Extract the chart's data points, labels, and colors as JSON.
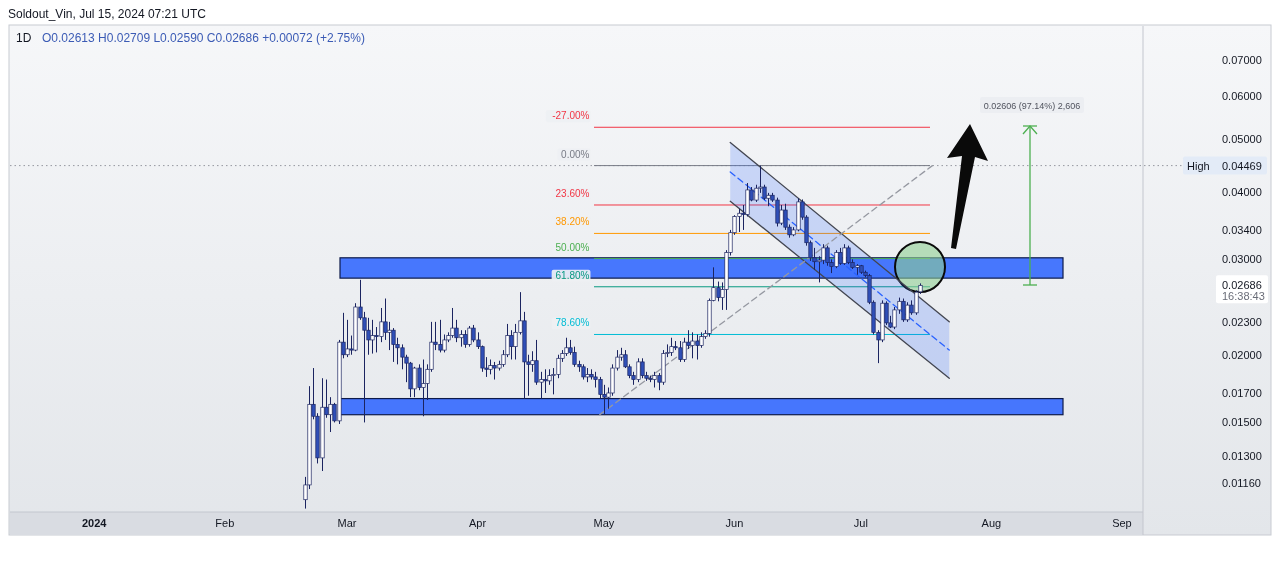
{
  "chart_data": {
    "type": "candlestick",
    "title": "1D",
    "subtitle": "O0.02613 H0.02709 L0.02590 C0.02686 +0.00072 (+2.75%)",
    "x": [
      "2024-02-20",
      "2024-02-21",
      "2024-02-22",
      "2024-02-23",
      "2024-02-24",
      "2024-02-25",
      "2024-02-26",
      "2024-02-27",
      "2024-02-28",
      "2024-02-29",
      "2024-03-01",
      "2024-03-02",
      "2024-03-03",
      "2024-03-04",
      "2024-03-05",
      "2024-03-06",
      "2024-03-07",
      "2024-03-08",
      "2024-03-09",
      "2024-03-10",
      "2024-03-11",
      "2024-03-12",
      "2024-03-13",
      "2024-03-14",
      "2024-03-15",
      "2024-03-16",
      "2024-03-17",
      "2024-03-18",
      "2024-03-19",
      "2024-03-20",
      "2024-03-21",
      "2024-03-22",
      "2024-03-23",
      "2024-03-24",
      "2024-03-25",
      "2024-03-26",
      "2024-03-27",
      "2024-03-28",
      "2024-03-29",
      "2024-03-30",
      "2024-03-31",
      "2024-04-01",
      "2024-04-02",
      "2024-04-03",
      "2024-04-04",
      "2024-04-05",
      "2024-04-06",
      "2024-04-07",
      "2024-04-08",
      "2024-04-09",
      "2024-04-10",
      "2024-04-11",
      "2024-04-12",
      "2024-04-13",
      "2024-04-14",
      "2024-04-15",
      "2024-04-16",
      "2024-04-17",
      "2024-04-18",
      "2024-04-19",
      "2024-04-20",
      "2024-04-21",
      "2024-04-22",
      "2024-04-23",
      "2024-04-24",
      "2024-04-25",
      "2024-04-26",
      "2024-04-27",
      "2024-04-28",
      "2024-04-29",
      "2024-04-30",
      "2024-05-01",
      "2024-05-02",
      "2024-05-03",
      "2024-05-04",
      "2024-05-05",
      "2024-05-06",
      "2024-05-07",
      "2024-05-08",
      "2024-05-09",
      "2024-05-10",
      "2024-05-11",
      "2024-05-12",
      "2024-05-13",
      "2024-05-14",
      "2024-05-15",
      "2024-05-16",
      "2024-05-17",
      "2024-05-18",
      "2024-05-19",
      "2024-05-20",
      "2024-05-21",
      "2024-05-22",
      "2024-05-23",
      "2024-05-24",
      "2024-05-25",
      "2024-05-26",
      "2024-05-27",
      "2024-05-28",
      "2024-05-29",
      "2024-05-30",
      "2024-05-31",
      "2024-06-01",
      "2024-06-02",
      "2024-06-03",
      "2024-06-04",
      "2024-06-05",
      "2024-06-06",
      "2024-06-07",
      "2024-06-08",
      "2024-06-09",
      "2024-06-10",
      "2024-06-11",
      "2024-06-12",
      "2024-06-13",
      "2024-06-14",
      "2024-06-15",
      "2024-06-16",
      "2024-06-17",
      "2024-06-18",
      "2024-06-19",
      "2024-06-20",
      "2024-06-21",
      "2024-06-22",
      "2024-06-23",
      "2024-06-24",
      "2024-06-25",
      "2024-06-26",
      "2024-06-27",
      "2024-06-28",
      "2024-06-29",
      "2024-06-30",
      "2024-07-01",
      "2024-07-02",
      "2024-07-03",
      "2024-07-04",
      "2024-07-05",
      "2024-07-06",
      "2024-07-07",
      "2024-07-08",
      "2024-07-09",
      "2024-07-10",
      "2024-07-11",
      "2024-07-12",
      "2024-07-13",
      "2024-07-14",
      "2024-07-15"
    ],
    "ohlc": [
      [
        0.0108,
        0.0119,
        0.0104,
        0.0115
      ],
      [
        0.0115,
        0.0175,
        0.0113,
        0.0162
      ],
      [
        0.0162,
        0.0189,
        0.0152,
        0.0154
      ],
      [
        0.0154,
        0.0156,
        0.0126,
        0.0129
      ],
      [
        0.0129,
        0.0181,
        0.0122,
        0.016
      ],
      [
        0.016,
        0.018,
        0.0153,
        0.0155
      ],
      [
        0.0155,
        0.0167,
        0.0144,
        0.0162
      ],
      [
        0.0162,
        0.0163,
        0.015,
        0.0151
      ],
      [
        0.0151,
        0.0213,
        0.0149,
        0.0211
      ],
      [
        0.0211,
        0.0239,
        0.0197,
        0.02
      ],
      [
        0.02,
        0.0232,
        0.0198,
        0.0205
      ],
      [
        0.0205,
        0.0217,
        0.02,
        0.0204
      ],
      [
        0.0204,
        0.0249,
        0.0203,
        0.0245
      ],
      [
        0.0245,
        0.0275,
        0.0232,
        0.0234
      ],
      [
        0.0234,
        0.024,
        0.015,
        0.0222
      ],
      [
        0.0222,
        0.0234,
        0.02,
        0.0213
      ],
      [
        0.0213,
        0.0232,
        0.0201,
        0.0217
      ],
      [
        0.0217,
        0.0225,
        0.0202,
        0.0216
      ],
      [
        0.0216,
        0.0244,
        0.0211,
        0.023
      ],
      [
        0.023,
        0.0254,
        0.0213,
        0.022
      ],
      [
        0.022,
        0.023,
        0.0204,
        0.0222
      ],
      [
        0.0222,
        0.0224,
        0.0194,
        0.0209
      ],
      [
        0.0209,
        0.0215,
        0.0192,
        0.0206
      ],
      [
        0.0206,
        0.0209,
        0.0188,
        0.0198
      ],
      [
        0.0198,
        0.02,
        0.0178,
        0.0193
      ],
      [
        0.0193,
        0.0194,
        0.0167,
        0.0173
      ],
      [
        0.0173,
        0.019,
        0.0167,
        0.0189
      ],
      [
        0.0189,
        0.0192,
        0.0172,
        0.0174
      ],
      [
        0.0174,
        0.0196,
        0.0154,
        0.0177
      ],
      [
        0.0177,
        0.0192,
        0.0165,
        0.0188
      ],
      [
        0.0188,
        0.023,
        0.0186,
        0.0211
      ],
      [
        0.0211,
        0.023,
        0.0204,
        0.0209
      ],
      [
        0.0209,
        0.0232,
        0.0202,
        0.0204
      ],
      [
        0.0204,
        0.0218,
        0.0202,
        0.0213
      ],
      [
        0.0213,
        0.022,
        0.0211,
        0.0217
      ],
      [
        0.0217,
        0.0244,
        0.0215,
        0.0224
      ],
      [
        0.0224,
        0.0232,
        0.0211,
        0.0215
      ],
      [
        0.0215,
        0.0222,
        0.0207,
        0.0218
      ],
      [
        0.0218,
        0.0222,
        0.0206,
        0.0209
      ],
      [
        0.0209,
        0.0226,
        0.0207,
        0.0224
      ],
      [
        0.0224,
        0.0227,
        0.0211,
        0.0213
      ],
      [
        0.0213,
        0.022,
        0.0205,
        0.0207
      ],
      [
        0.0207,
        0.0208,
        0.0186,
        0.0189
      ],
      [
        0.0189,
        0.0198,
        0.0182,
        0.0188
      ],
      [
        0.0188,
        0.0196,
        0.0184,
        0.0191
      ],
      [
        0.0191,
        0.0194,
        0.018,
        0.0189
      ],
      [
        0.0189,
        0.0195,
        0.0187,
        0.0192
      ],
      [
        0.0192,
        0.0204,
        0.019,
        0.02
      ],
      [
        0.02,
        0.0228,
        0.0198,
        0.0217
      ],
      [
        0.0217,
        0.0222,
        0.0196,
        0.0207
      ],
      [
        0.0207,
        0.0228,
        0.0196,
        0.022
      ],
      [
        0.022,
        0.0261,
        0.0218,
        0.0231
      ],
      [
        0.0231,
        0.024,
        0.0166,
        0.0194
      ],
      [
        0.0194,
        0.02,
        0.0168,
        0.0192
      ],
      [
        0.0192,
        0.0203,
        0.0186,
        0.0195
      ],
      [
        0.0195,
        0.0213,
        0.0176,
        0.0178
      ],
      [
        0.0178,
        0.0186,
        0.0166,
        0.018
      ],
      [
        0.018,
        0.0188,
        0.017,
        0.0179
      ],
      [
        0.0179,
        0.0188,
        0.0176,
        0.0183
      ],
      [
        0.0183,
        0.0189,
        0.0169,
        0.0184
      ],
      [
        0.0184,
        0.02,
        0.0181,
        0.0197
      ],
      [
        0.0197,
        0.0204,
        0.0194,
        0.0201
      ],
      [
        0.0201,
        0.0215,
        0.0199,
        0.0206
      ],
      [
        0.0206,
        0.0213,
        0.02,
        0.0202
      ],
      [
        0.0202,
        0.0207,
        0.019,
        0.0192
      ],
      [
        0.0192,
        0.0195,
        0.0186,
        0.019
      ],
      [
        0.019,
        0.0192,
        0.018,
        0.0182
      ],
      [
        0.0182,
        0.0189,
        0.0178,
        0.0184
      ],
      [
        0.0184,
        0.0188,
        0.018,
        0.0182
      ],
      [
        0.0182,
        0.0186,
        0.0174,
        0.018
      ],
      [
        0.018,
        0.0182,
        0.0166,
        0.0169
      ],
      [
        0.0169,
        0.0176,
        0.0155,
        0.0167
      ],
      [
        0.0167,
        0.0174,
        0.0159,
        0.017
      ],
      [
        0.017,
        0.0192,
        0.0168,
        0.0189
      ],
      [
        0.0189,
        0.0204,
        0.0187,
        0.0198
      ],
      [
        0.0198,
        0.0206,
        0.0195,
        0.02
      ],
      [
        0.02,
        0.0204,
        0.0189,
        0.019
      ],
      [
        0.019,
        0.0192,
        0.0181,
        0.0183
      ],
      [
        0.0183,
        0.0186,
        0.0176,
        0.018
      ],
      [
        0.018,
        0.0197,
        0.0178,
        0.0194
      ],
      [
        0.0194,
        0.0197,
        0.0181,
        0.0183
      ],
      [
        0.0183,
        0.0186,
        0.0179,
        0.0181
      ],
      [
        0.0181,
        0.0183,
        0.0178,
        0.018
      ],
      [
        0.018,
        0.0186,
        0.0174,
        0.0183
      ],
      [
        0.0183,
        0.0185,
        0.0172,
        0.0178
      ],
      [
        0.0178,
        0.0204,
        0.0176,
        0.0201
      ],
      [
        0.0201,
        0.0209,
        0.0198,
        0.0202
      ],
      [
        0.0202,
        0.0215,
        0.0199,
        0.0207
      ],
      [
        0.0207,
        0.0212,
        0.0204,
        0.0206
      ],
      [
        0.0206,
        0.0212,
        0.0194,
        0.0196
      ],
      [
        0.0196,
        0.0215,
        0.0194,
        0.0211
      ],
      [
        0.0211,
        0.0222,
        0.0205,
        0.0208
      ],
      [
        0.0208,
        0.022,
        0.0197,
        0.0212
      ],
      [
        0.0212,
        0.0218,
        0.0196,
        0.0208
      ],
      [
        0.0208,
        0.022,
        0.0206,
        0.0216
      ],
      [
        0.0216,
        0.0222,
        0.0214,
        0.0219
      ],
      [
        0.0219,
        0.0254,
        0.0216,
        0.0252
      ],
      [
        0.0252,
        0.029,
        0.0251,
        0.0266
      ],
      [
        0.0266,
        0.0273,
        0.0251,
        0.0255
      ],
      [
        0.0255,
        0.0272,
        0.0242,
        0.0264
      ],
      [
        0.0264,
        0.0312,
        0.0242,
        0.0309
      ],
      [
        0.0309,
        0.034,
        0.0305,
        0.0336
      ],
      [
        0.0336,
        0.0362,
        0.0333,
        0.036
      ],
      [
        0.036,
        0.0372,
        0.0337,
        0.0365
      ],
      [
        0.0365,
        0.0378,
        0.034,
        0.0363
      ],
      [
        0.0363,
        0.0415,
        0.036,
        0.0403
      ],
      [
        0.0403,
        0.0408,
        0.0384,
        0.0386
      ],
      [
        0.0386,
        0.0412,
        0.0383,
        0.0406
      ],
      [
        0.0406,
        0.04469,
        0.0398,
        0.0408
      ],
      [
        0.0408,
        0.0412,
        0.0386,
        0.0389
      ],
      [
        0.0389,
        0.0398,
        0.0376,
        0.0394
      ],
      [
        0.0394,
        0.0398,
        0.0383,
        0.0386
      ],
      [
        0.0386,
        0.039,
        0.0345,
        0.035
      ],
      [
        0.035,
        0.0378,
        0.0347,
        0.037
      ],
      [
        0.037,
        0.038,
        0.034,
        0.0344
      ],
      [
        0.0344,
        0.0348,
        0.0329,
        0.0333
      ],
      [
        0.0333,
        0.0344,
        0.0331,
        0.034
      ],
      [
        0.034,
        0.0389,
        0.0338,
        0.0383
      ],
      [
        0.0383,
        0.0387,
        0.0355,
        0.0359
      ],
      [
        0.0359,
        0.0362,
        0.0318,
        0.0322
      ],
      [
        0.0322,
        0.0325,
        0.0298,
        0.0302
      ],
      [
        0.0302,
        0.0315,
        0.0287,
        0.0297
      ],
      [
        0.0297,
        0.0304,
        0.0272,
        0.0299
      ],
      [
        0.0299,
        0.032,
        0.0294,
        0.0315
      ],
      [
        0.0315,
        0.0318,
        0.0292,
        0.0296
      ],
      [
        0.0296,
        0.03,
        0.0283,
        0.0291
      ],
      [
        0.0291,
        0.0312,
        0.0289,
        0.0309
      ],
      [
        0.0309,
        0.0315,
        0.0293,
        0.0295
      ],
      [
        0.0295,
        0.032,
        0.0293,
        0.0315
      ],
      [
        0.0315,
        0.0318,
        0.0294,
        0.0296
      ],
      [
        0.0296,
        0.03,
        0.0288,
        0.029
      ],
      [
        0.029,
        0.0294,
        0.0281,
        0.0292
      ],
      [
        0.0292,
        0.0293,
        0.0282,
        0.0284
      ],
      [
        0.0284,
        0.0286,
        0.0278,
        0.028
      ],
      [
        0.028,
        0.0282,
        0.0248,
        0.025
      ],
      [
        0.025,
        0.0252,
        0.0218,
        0.022
      ],
      [
        0.022,
        0.0222,
        0.0193,
        0.0213
      ],
      [
        0.0213,
        0.0252,
        0.0211,
        0.0249
      ],
      [
        0.0249,
        0.0251,
        0.0227,
        0.0229
      ],
      [
        0.0229,
        0.0236,
        0.0224,
        0.0225
      ],
      [
        0.0225,
        0.0245,
        0.0223,
        0.0242
      ],
      [
        0.0242,
        0.0255,
        0.0238,
        0.0251
      ],
      [
        0.0251,
        0.0254,
        0.023,
        0.0232
      ],
      [
        0.0232,
        0.025,
        0.023,
        0.0247
      ],
      [
        0.0247,
        0.0252,
        0.0237,
        0.0239
      ],
      [
        0.0239,
        0.0263,
        0.0237,
        0.0261
      ],
      [
        0.02613,
        0.02709,
        0.0259,
        0.02686
      ]
    ],
    "xlim": [
      "2023-12-12",
      "2024-09-06"
    ],
    "xticks": [
      {
        "value": "2024-01-01",
        "label": "2024"
      },
      {
        "value": "2024-02-01",
        "label": "Feb"
      },
      {
        "value": "2024-03-01",
        "label": "Mar"
      },
      {
        "value": "2024-04-01",
        "label": "Apr"
      },
      {
        "value": "2024-05-01",
        "label": "May"
      },
      {
        "value": "2024-06-01",
        "label": "Jun"
      },
      {
        "value": "2024-07-01",
        "label": "Jul"
      },
      {
        "value": "2024-08-01",
        "label": "Aug"
      },
      {
        "value": "2024-09-01",
        "label": "Sep"
      }
    ],
    "ylim": [
      0.01025,
      0.0809
    ],
    "yticks": [
      {
        "value": 0.07,
        "label": "0.07000"
      },
      {
        "value": 0.06,
        "label": "0.06000"
      },
      {
        "value": 0.05,
        "label": "0.05000"
      },
      {
        "value": 0.04,
        "label": "0.04000"
      },
      {
        "value": 0.034,
        "label": "0.03400"
      },
      {
        "value": 0.03,
        "label": "0.03000"
      },
      {
        "value": 0.023,
        "label": "0.02300"
      },
      {
        "value": 0.02,
        "label": "0.02000"
      },
      {
        "value": 0.017,
        "label": "0.01700"
      },
      {
        "value": 0.015,
        "label": "0.01500"
      },
      {
        "value": 0.013,
        "label": "0.01300"
      },
      {
        "value": 0.0116,
        "label": "0.01160"
      }
    ],
    "log": "y",
    "series": [
      {
        "type": "line",
        "x": [
          "2024-05-31",
          "2024-07-22"
        ],
        "values": [
          0.0435,
          0.0204
        ],
        "upper": [
          0.0493,
          0.023
        ],
        "lower": [
          0.0384,
          0.0181
        ],
        "color": "#2962ff",
        "line_style": "dashed"
      },
      {
        "type": "line",
        "x": [
          "2024-05-31",
          "2024-07-22"
        ],
        "values": [
          0.0493,
          0.023
        ],
        "color": "#434651"
      },
      {
        "type": "line",
        "x": [
          "2024-05-31",
          "2024-07-22"
        ],
        "values": [
          0.0384,
          0.0181
        ],
        "color": "#434651"
      },
      {
        "type": "line",
        "x": [
          "2024-04-30",
          "2024-07-18"
        ],
        "values": [
          0.0155,
          0.04469
        ],
        "color": "#9598a1",
        "line_style": "dashed"
      }
    ],
    "ref_lines": [
      {
        "axis": "y",
        "value": 0.04469,
        "label": "High 0.04469",
        "color": "#9598a1",
        "line_style": "dotted"
      },
      {
        "axis": "y",
        "value": 0.0526,
        "color": "#f23645"
      },
      {
        "axis": "y",
        "value": 0.04469,
        "color": "#787b86"
      },
      {
        "axis": "y",
        "value": 0.0378,
        "color": "#f23645"
      },
      {
        "axis": "y",
        "value": 0.0335,
        "color": "#ff9800"
      },
      {
        "axis": "y",
        "value": 0.0301,
        "color": "#4caf50"
      },
      {
        "axis": "y",
        "value": 0.0267,
        "color": "#089981"
      },
      {
        "axis": "y",
        "value": 0.0218,
        "color": "#00bcd4"
      }
    ],
    "bands": [
      {
        "axis": "y",
        "from": 0.0277,
        "to": 0.0302,
        "color": "#2962ff"
      },
      {
        "axis": "y",
        "from": 0.0155,
        "to": 0.0166,
        "color": "#2962ff"
      }
    ],
    "annotations": [
      "Soldout_Vin, Jul 15, 2024 07:21 UTC",
      "0.02606 (97.14%) 2,606",
      "0.02686 16:38:43",
      {
        "text": "-27.00%",
        "x": "2024-04-29",
        "y": 0.0526
      },
      {
        "text": "0.00%",
        "x": "2024-04-29",
        "y": 0.04469
      },
      {
        "text": "23.60%",
        "x": "2024-04-29",
        "y": 0.0378
      },
      {
        "text": "38.20%",
        "x": "2024-04-29",
        "y": 0.0335
      },
      {
        "text": "50.00%",
        "x": "2024-04-29",
        "y": 0.0301
      },
      {
        "text": "61.80%",
        "x": "2024-04-29",
        "y": 0.0267
      },
      {
        "text": "78.60%",
        "x": "2024-04-29",
        "y": 0.0218
      }
    ]
  }
}
